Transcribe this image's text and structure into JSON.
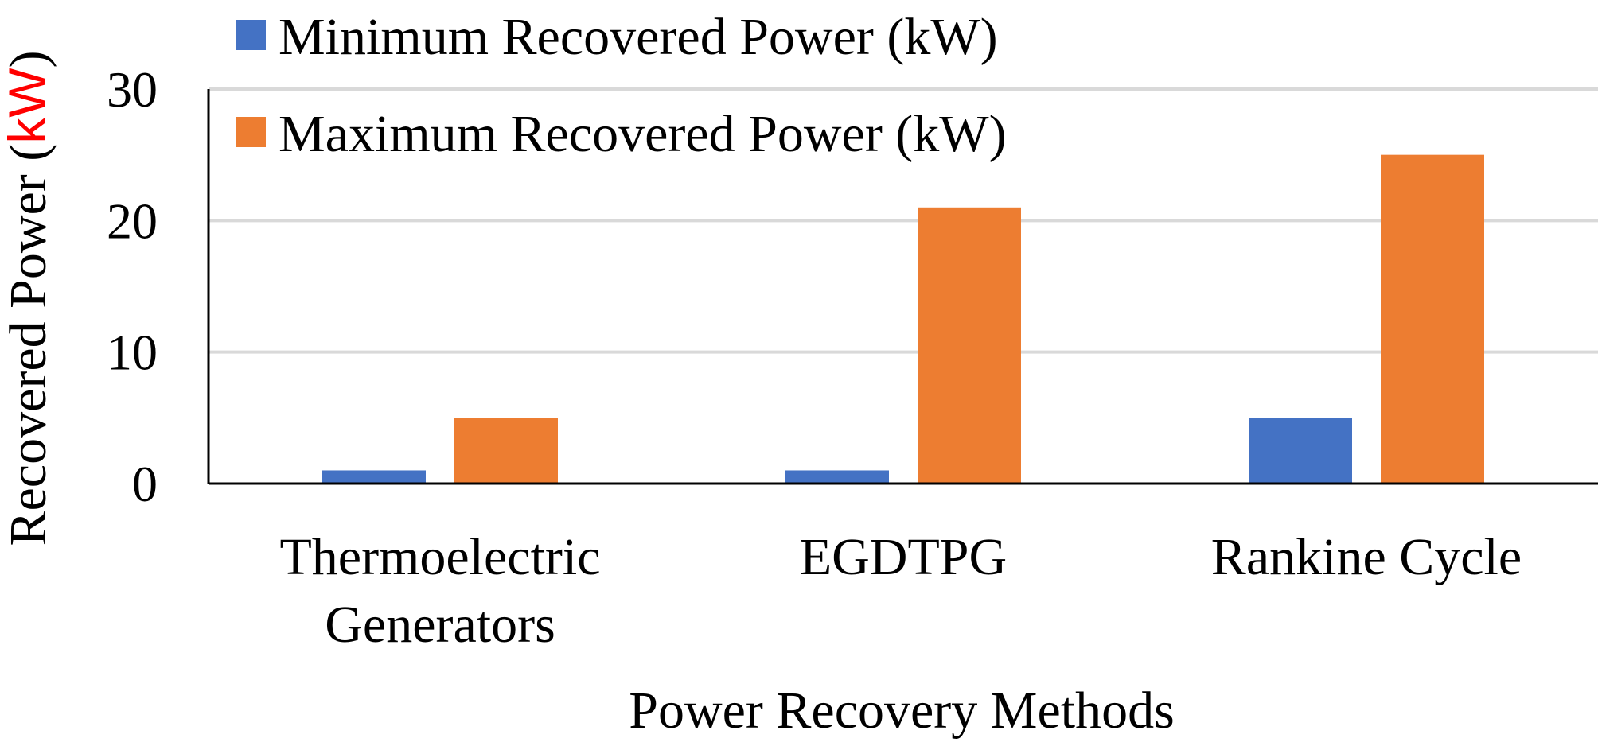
{
  "chart_data": {
    "type": "bar",
    "categories": [
      [
        "Thermoelectric",
        "Generators"
      ],
      [
        "EGDTPG"
      ],
      [
        "Rankine Cycle"
      ]
    ],
    "series": [
      {
        "name": "Minimum Recovered Power (kW)",
        "values": [
          1,
          1,
          5
        ],
        "color": "#4472C4"
      },
      {
        "name": "Maximum Recovered Power (kW)",
        "values": [
          5,
          21,
          25
        ],
        "color": "#ED7D31"
      }
    ],
    "xlabel": "Power Recovery Methods",
    "ylabel": {
      "text": "Recovered Power (",
      "unit": "kW",
      "close": ")",
      "unit_color": "#FF0000"
    },
    "ylim": [
      0,
      30
    ],
    "yticks": [
      "0",
      "10",
      "20",
      "30"
    ],
    "grid": true,
    "legend_position": "top-left"
  }
}
